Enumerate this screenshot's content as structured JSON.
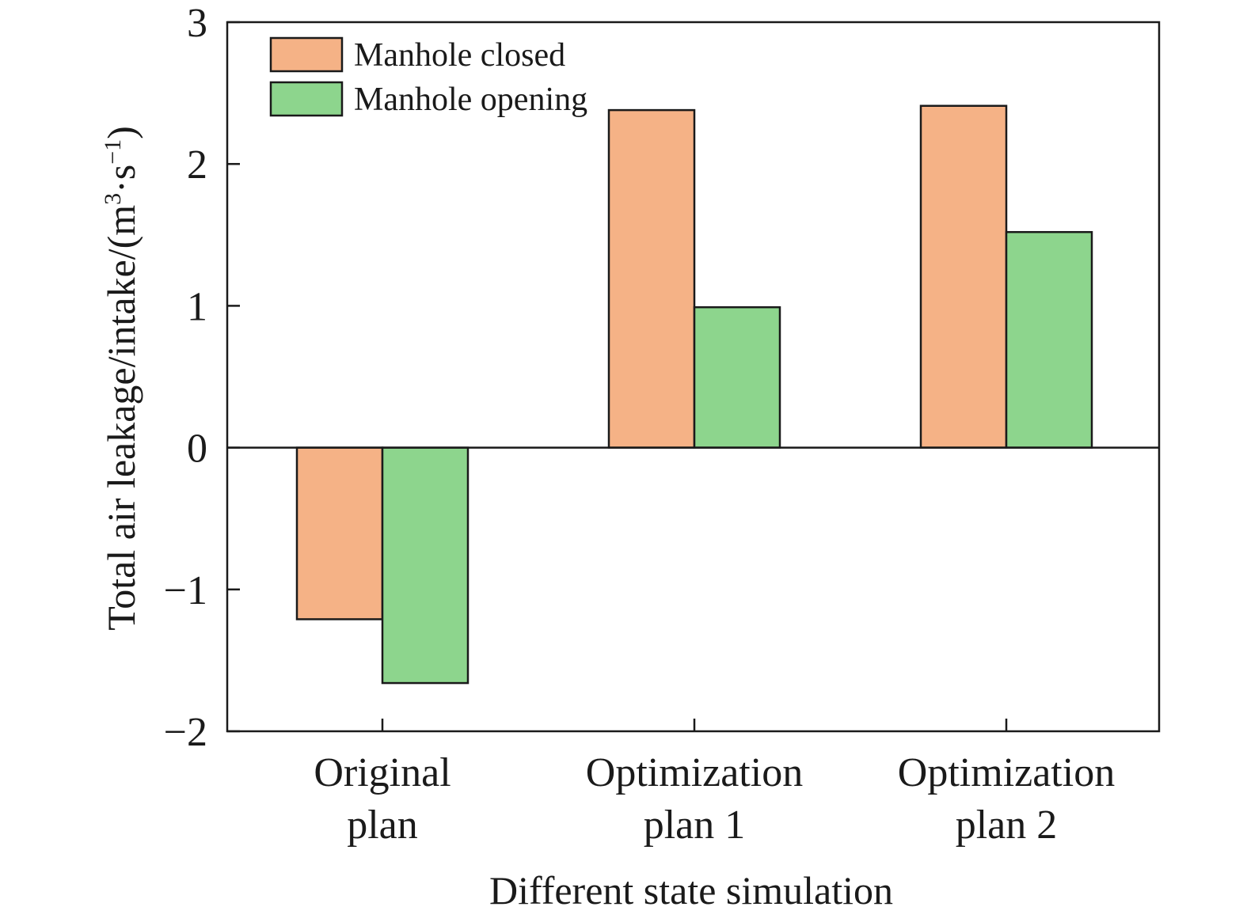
{
  "chart_data": {
    "type": "bar",
    "categories": [
      [
        "Original",
        "plan"
      ],
      [
        "Optimization",
        "plan 1"
      ],
      [
        "Optimization",
        "plan 2"
      ]
    ],
    "series": [
      {
        "name": "Manhole closed",
        "color": "#f5b286",
        "values": [
          -1.21,
          2.38,
          2.41
        ]
      },
      {
        "name": "Manhole opening",
        "color": "#8dd58d",
        "values": [
          -1.66,
          0.99,
          1.52
        ]
      }
    ],
    "xlabel": "Different state simulation",
    "ylabel": {
      "main": "Total air leakage/intake/(m",
      "sup1": "3",
      "mid": "·s",
      "sup2": "−1",
      "end": ")"
    },
    "ylim": [
      -2,
      3
    ],
    "yticks": [
      3,
      2,
      1,
      0,
      -1,
      -2
    ],
    "ytick_labels": [
      "3",
      "2",
      "1",
      "0",
      "−1",
      "−2"
    ],
    "legend_position": "top-left",
    "grid": false
  }
}
